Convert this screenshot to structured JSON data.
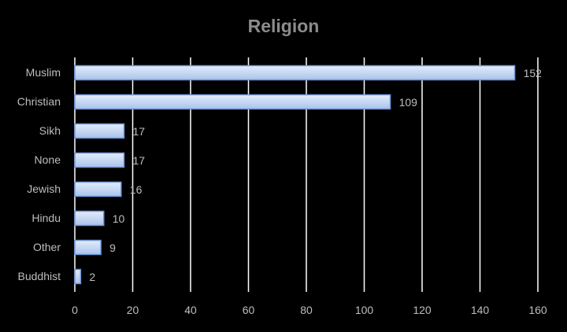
{
  "chart_data": {
    "type": "bar",
    "orientation": "horizontal",
    "title": "Religion",
    "xlabel": "",
    "ylabel": "",
    "categories": [
      "Muslim",
      "Christian",
      "Sikh",
      "None",
      "Jewish",
      "Hindu",
      "Other",
      "Buddhist"
    ],
    "values": [
      152,
      109,
      17,
      17,
      16,
      10,
      9,
      2
    ],
    "xlim": [
      0,
      160
    ],
    "xticks": [
      0,
      20,
      40,
      60,
      80,
      100,
      120,
      140,
      160
    ],
    "grid": "vertical",
    "legend": "none",
    "colors": {
      "background": "#000000",
      "bar_fill_top": "#e3ecfa",
      "bar_fill_bottom": "#a9c3ec",
      "bar_stroke": "#6f97d8",
      "grid": "#ffffff",
      "text": "#bdbdbd",
      "title": "#8c8c8c"
    }
  }
}
